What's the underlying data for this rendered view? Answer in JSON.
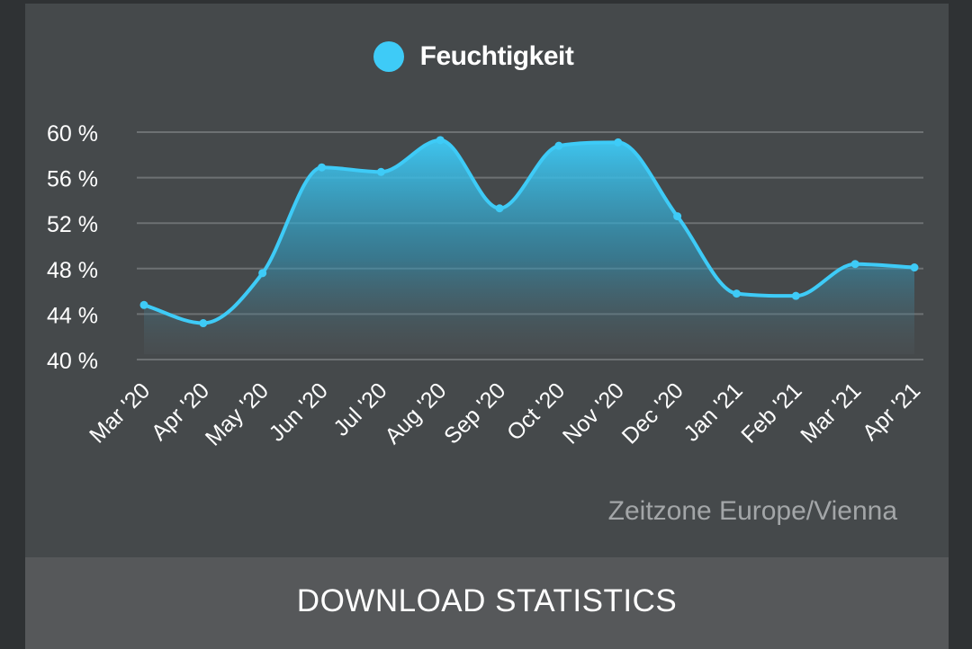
{
  "colors": {
    "series": "#3ecbf7",
    "grid": "#6d7173",
    "axis_text": "#ffffff"
  },
  "footer": {
    "timezone": "Zeitzone Europe/Vienna",
    "download_label": "DOWNLOAD STATISTICS"
  },
  "chart_data": {
    "type": "area",
    "categories": [
      "Mar '20",
      "Apr '20",
      "May '20",
      "Jun '20",
      "Jul '20",
      "Aug '20",
      "Sep '20",
      "Oct '20",
      "Nov '20",
      "Dec '20",
      "Jan '21",
      "Feb '21",
      "Mar '21",
      "Apr '21"
    ],
    "series": [
      {
        "name": "Feuchtigkeit",
        "values": [
          44.8,
          43.2,
          47.6,
          56.9,
          56.5,
          59.3,
          53.3,
          58.8,
          59.1,
          52.6,
          45.8,
          45.6,
          48.4,
          48.1
        ]
      }
    ],
    "ylim": [
      40,
      60
    ],
    "yticks": [
      60,
      56,
      52,
      48,
      44,
      40
    ],
    "ytick_labels": [
      "60 %",
      "56 %",
      "52 %",
      "48 %",
      "44 %",
      "40 %"
    ],
    "grid": true,
    "legend": "top-center"
  }
}
